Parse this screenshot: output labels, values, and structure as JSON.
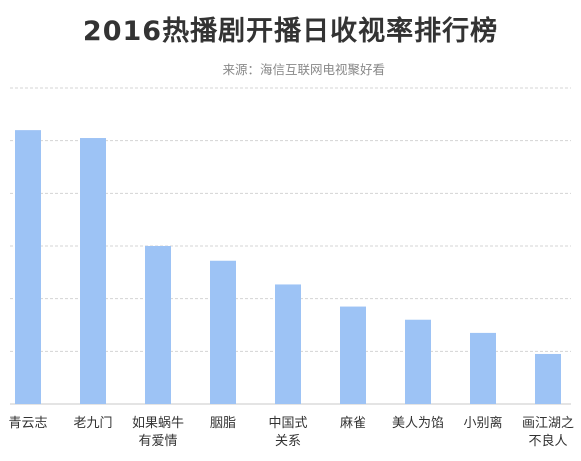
{
  "chart_data": {
    "type": "bar",
    "title": "2016热播剧开播日收视率排行榜",
    "subtitle": "来源：海信互联网电视聚好看",
    "xlabel": "",
    "ylabel": "",
    "categories": [
      [
        "青云志"
      ],
      [
        "老九门"
      ],
      [
        "如果蜗牛",
        "有爱情"
      ],
      [
        "胭脂"
      ],
      [
        "中国式",
        "关系"
      ],
      [
        "麻雀"
      ],
      [
        "美人为馅"
      ],
      [
        "小别离"
      ],
      [
        "画江湖之",
        "不良人"
      ]
    ],
    "values": [
      5.2,
      5.05,
      3.0,
      2.72,
      2.27,
      1.85,
      1.6,
      1.35,
      0.95
    ],
    "ylim": [
      0,
      6
    ],
    "grid": true,
    "colors": {
      "bar": "#9dc3f5",
      "grid": "#d4d4d4",
      "axis": "#c8c8c8"
    }
  }
}
